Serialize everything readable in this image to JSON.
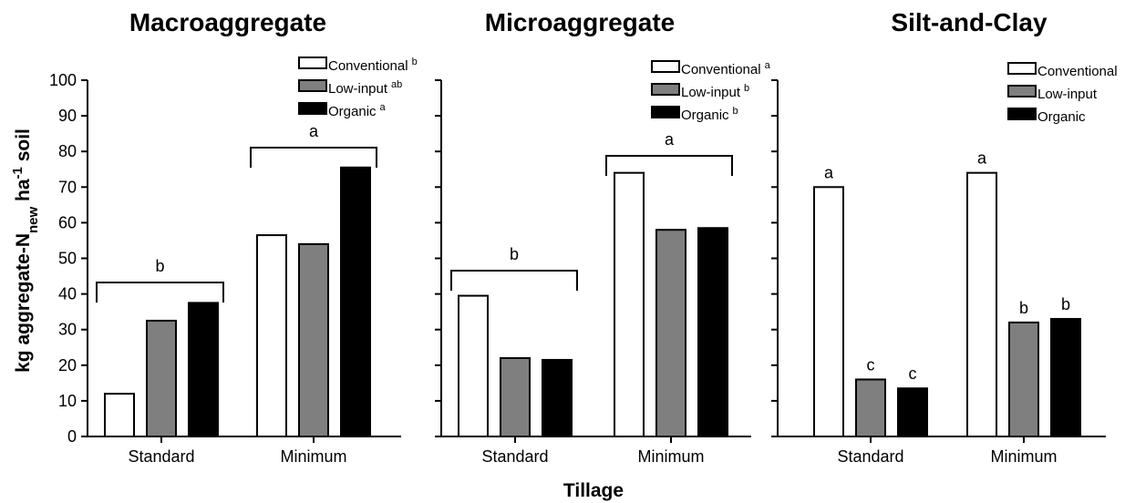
{
  "y_axis_label": {
    "main": "kg aggregate-N",
    "subscript": "new",
    "mid": " ha",
    "superscript": "-1",
    "end": " soil"
  },
  "x_axis_label": "Tillage",
  "colors": {
    "Conventional": "#ffffff",
    "Low-input": "#7f7f7f",
    "Organic": "#000000"
  },
  "chart_data": [
    {
      "type": "bar",
      "title": "Macroaggregate",
      "categories": [
        "Standard",
        "Minimum"
      ],
      "ylim": [
        0,
        100
      ],
      "yticks": [
        0,
        10,
        20,
        30,
        40,
        50,
        60,
        70,
        80,
        90,
        100
      ],
      "series": [
        {
          "name": "Conventional",
          "letter": "b",
          "values": [
            12,
            56.5
          ]
        },
        {
          "name": "Low-input",
          "letter": "ab",
          "values": [
            32.5,
            54
          ]
        },
        {
          "name": "Organic",
          "letter": "a",
          "values": [
            37.5,
            75.5
          ]
        }
      ],
      "group_letters": [
        "b",
        "a"
      ],
      "bar_letters": null,
      "legend_position": "top-right"
    },
    {
      "type": "bar",
      "title": "Microaggregate",
      "categories": [
        "Standard",
        "Minimum"
      ],
      "ylim": [
        0,
        100
      ],
      "yticks": [
        0,
        10,
        20,
        30,
        40,
        50,
        60,
        70,
        80,
        90,
        100
      ],
      "series": [
        {
          "name": "Conventional",
          "letter": "a",
          "values": [
            39.5,
            74
          ]
        },
        {
          "name": "Low-input",
          "letter": "b",
          "values": [
            22,
            58
          ]
        },
        {
          "name": "Organic",
          "letter": "b",
          "values": [
            21.5,
            58.5
          ]
        }
      ],
      "group_letters": [
        "b",
        "a"
      ],
      "bar_letters": null,
      "legend_position": "top-right"
    },
    {
      "type": "bar",
      "title": "Silt-and-Clay",
      "categories": [
        "Standard",
        "Minimum"
      ],
      "ylim": [
        0,
        100
      ],
      "yticks": [
        0,
        10,
        20,
        30,
        40,
        50,
        60,
        70,
        80,
        90,
        100
      ],
      "series": [
        {
          "name": "Conventional",
          "letter": "",
          "values": [
            70,
            74
          ]
        },
        {
          "name": "Low-input",
          "letter": "",
          "values": [
            16,
            32
          ]
        },
        {
          "name": "Organic",
          "letter": "",
          "values": [
            13.5,
            33
          ]
        }
      ],
      "group_letters": null,
      "bar_letters": [
        [
          "a",
          "c",
          "c"
        ],
        [
          "a",
          "b",
          "b"
        ]
      ],
      "legend_position": "top-right"
    }
  ]
}
